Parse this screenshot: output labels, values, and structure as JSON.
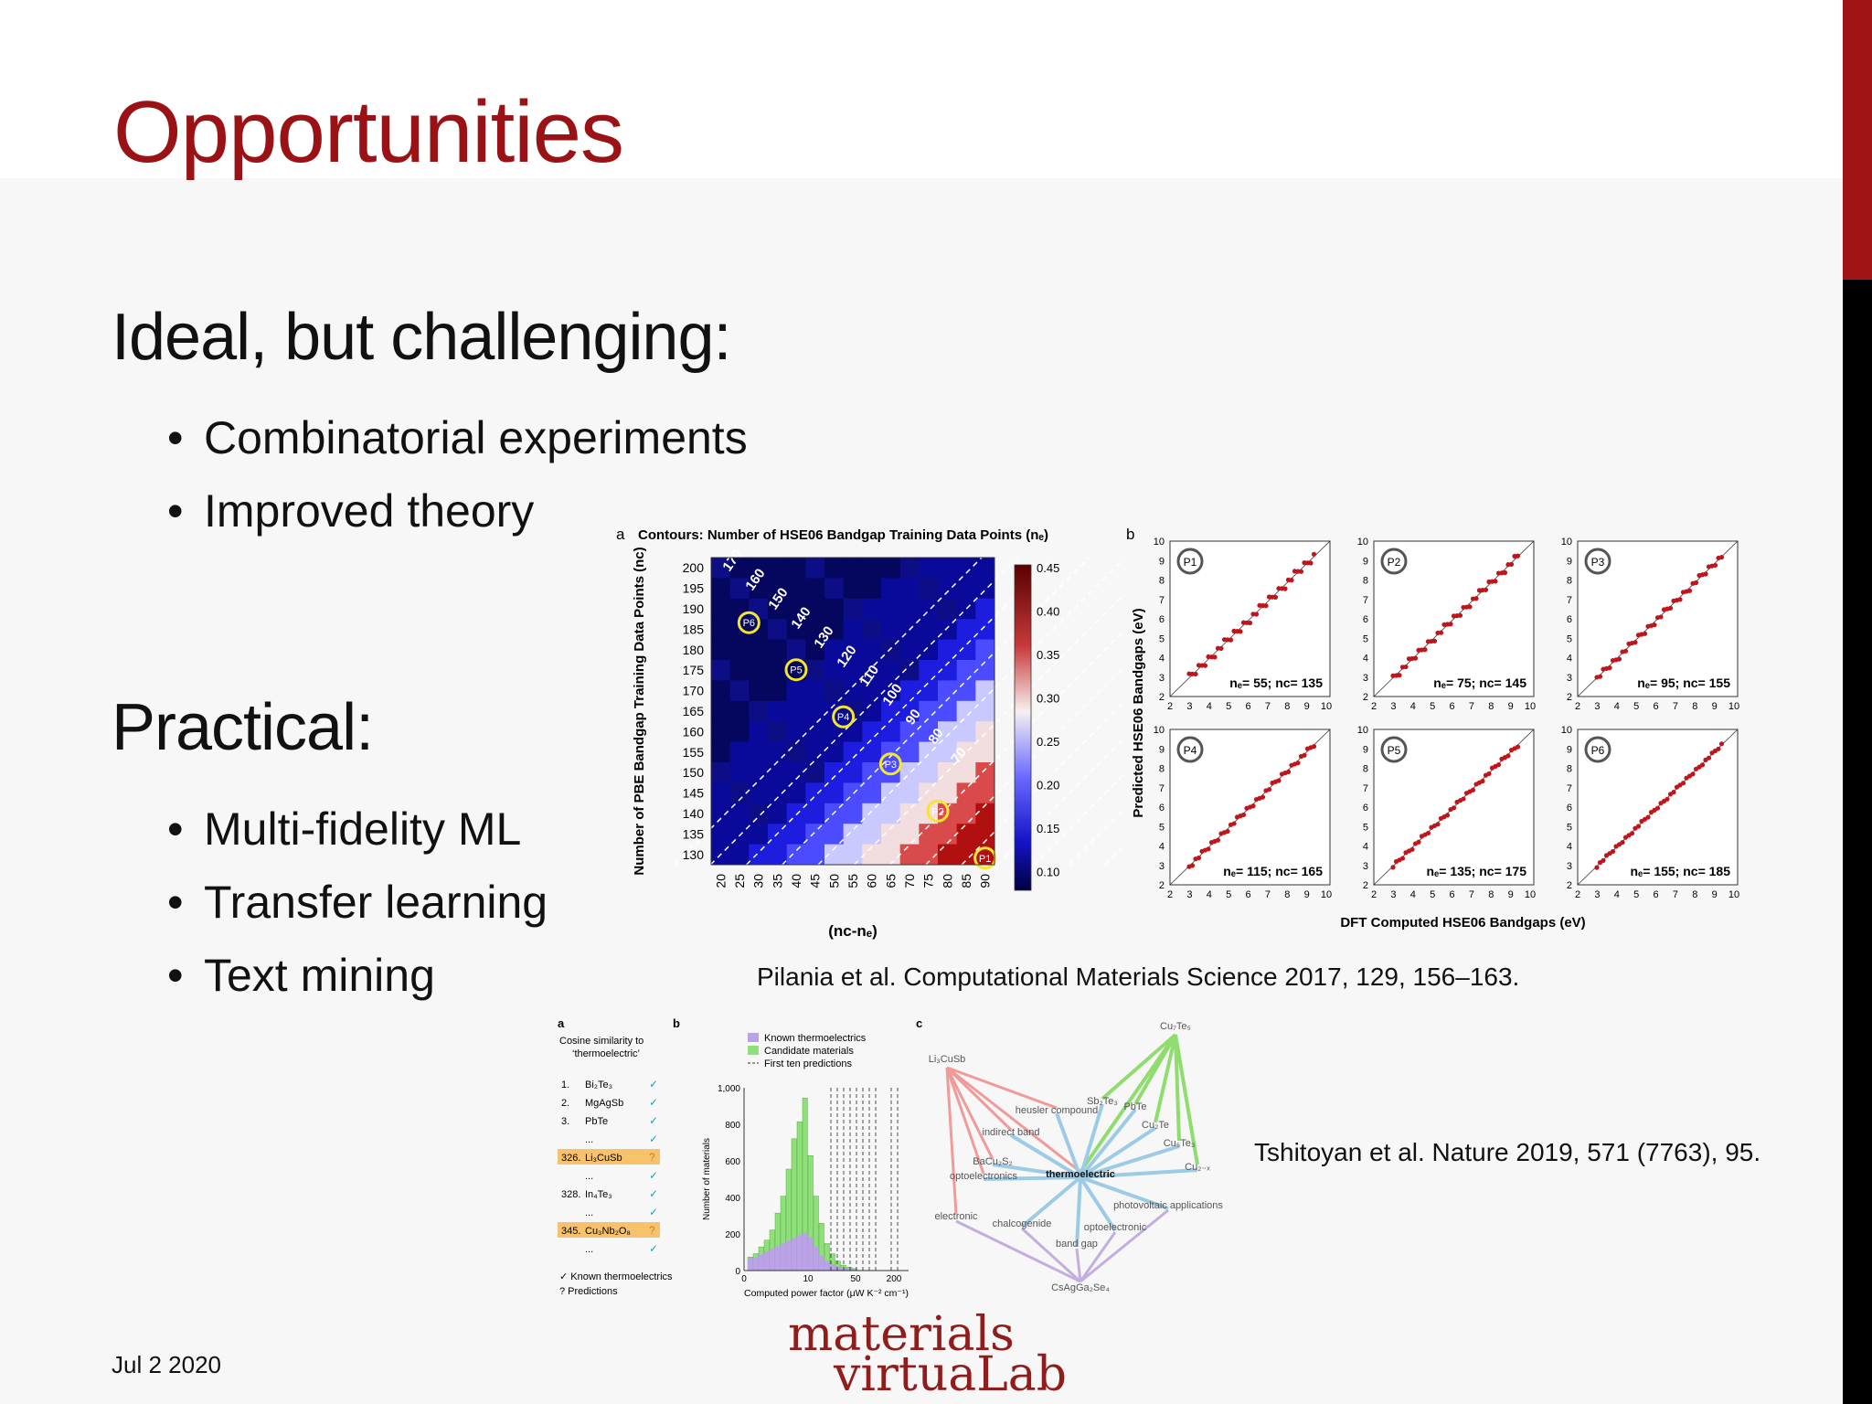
{
  "slide": {
    "title": "Opportunities",
    "section1": "Ideal, but challenging:",
    "bullets1": [
      "Combinatorial experiments",
      "Improved theory"
    ],
    "section2": "Practical:",
    "bullets2": [
      "Multi-fidelity ML",
      "Transfer learning",
      "Text mining"
    ],
    "date": "Jul 2 2020",
    "citation1": "Pilania et al. Computational Materials Science 2017, 129, 156–163.",
    "citation2": "Tshitoyan et al. Nature 2019, 571 (7763), 95.",
    "logo_line1": "materials",
    "logo_line2": "virtuaLab",
    "colors": {
      "accent": "#9a1215",
      "bar_black": "#000000"
    }
  },
  "figA": {
    "panel": "a",
    "title": "Contours: Number of HSE06 Bandgap Training Data Points (nₑ)",
    "ylabel": "Number of PBE Bandgap Training Data Points (nᴄ)",
    "xlabel": "(nᴄ-nₑ)",
    "yticks": [
      "200",
      "195",
      "190",
      "185",
      "180",
      "175",
      "170",
      "165",
      "160",
      "155",
      "150",
      "145",
      "140",
      "135",
      "130"
    ],
    "xticks": [
      "20",
      "25",
      "30",
      "35",
      "40",
      "45",
      "50",
      "55",
      "60",
      "65",
      "70",
      "75",
      "80",
      "85",
      "90"
    ],
    "contours": [
      "170",
      "160",
      "150",
      "140",
      "130",
      "120",
      "110",
      "100",
      "90",
      "80",
      "70",
      "60",
      "50"
    ],
    "points": [
      "P6",
      "P5",
      "P4",
      "P3",
      "P2",
      "P1"
    ],
    "colorbar": [
      "0.45",
      "0.40",
      "0.35",
      "0.30",
      "0.25",
      "0.20",
      "0.15",
      "0.10"
    ]
  },
  "figB": {
    "panel": "b",
    "ylabel": "Predicted HSE06 Bandgaps (eV)",
    "xlabel": "DFT Computed HSE06 Bandgaps (eV)",
    "panels": [
      {
        "tag": "P1",
        "label": "nₑ= 55; nᴄ= 135"
      },
      {
        "tag": "P2",
        "label": "nₑ= 75; nᴄ= 145"
      },
      {
        "tag": "P3",
        "label": "nₑ= 95; nᴄ= 155"
      },
      {
        "tag": "P4",
        "label": "nₑ= 115; nᴄ= 165"
      },
      {
        "tag": "P5",
        "label": "nₑ= 135; nᴄ= 175"
      },
      {
        "tag": "P6",
        "label": "nₑ= 155; nᴄ= 185"
      }
    ],
    "ticks": [
      "2",
      "3",
      "4",
      "5",
      "6",
      "7",
      "8",
      "9",
      "10"
    ]
  },
  "figC": {
    "a_label": "a",
    "a_title": "Cosine similarity to ‘thermoelectric’",
    "a_rows": [
      {
        "n": "1.",
        "name": "Bi₂Te₃",
        "mark": "✓",
        "hl": false
      },
      {
        "n": "2.",
        "name": "MgAgSb",
        "mark": "✓",
        "hl": false
      },
      {
        "n": "3.",
        "name": "PbTe",
        "mark": "✓",
        "hl": false
      },
      {
        "n": "",
        "name": "...",
        "mark": "✓",
        "hl": false
      },
      {
        "n": "326.",
        "name": "Li₃CuSb",
        "mark": "?",
        "hl": true
      },
      {
        "n": "",
        "name": "...",
        "mark": "✓",
        "hl": false
      },
      {
        "n": "328.",
        "name": "In₄Te₃",
        "mark": "✓",
        "hl": false
      },
      {
        "n": "",
        "name": "...",
        "mark": "✓",
        "hl": false
      },
      {
        "n": "345.",
        "name": "Cu₃Nb₂O₈",
        "mark": "?",
        "hl": true
      },
      {
        "n": "",
        "name": "...",
        "mark": "✓",
        "hl": false
      }
    ],
    "a_legend": [
      "✓ Known thermoelectrics",
      "? Predictions"
    ],
    "b_label": "b",
    "b_legend": [
      "Known thermoelectrics",
      "Candidate materials",
      "First ten predictions"
    ],
    "b_ylabel": "Number of materials",
    "b_xlabel": "Computed power factor (μW K⁻² cm⁻¹)",
    "b_yticks": [
      "1,000",
      "800",
      "600",
      "400",
      "200",
      "0"
    ],
    "b_xticks": [
      "0",
      "10",
      "50",
      "200"
    ],
    "c_label": "c",
    "c_nodes": [
      "Cu₇Te₅",
      "Li₃CuSb",
      "heusler compound",
      "Sb₂Te₃",
      "PbTe",
      "Cu₂Te",
      "indirect band",
      "BaCu₂S₂",
      "Cu₅Te₃",
      "optoelectronics",
      "thermoelectric",
      "Cu₂₋ₓ",
      "electronic",
      "photovoltaic applications",
      "chalcogenide",
      "optoelectronic",
      "band gap",
      "CsAgGa₂Se₄"
    ]
  }
}
